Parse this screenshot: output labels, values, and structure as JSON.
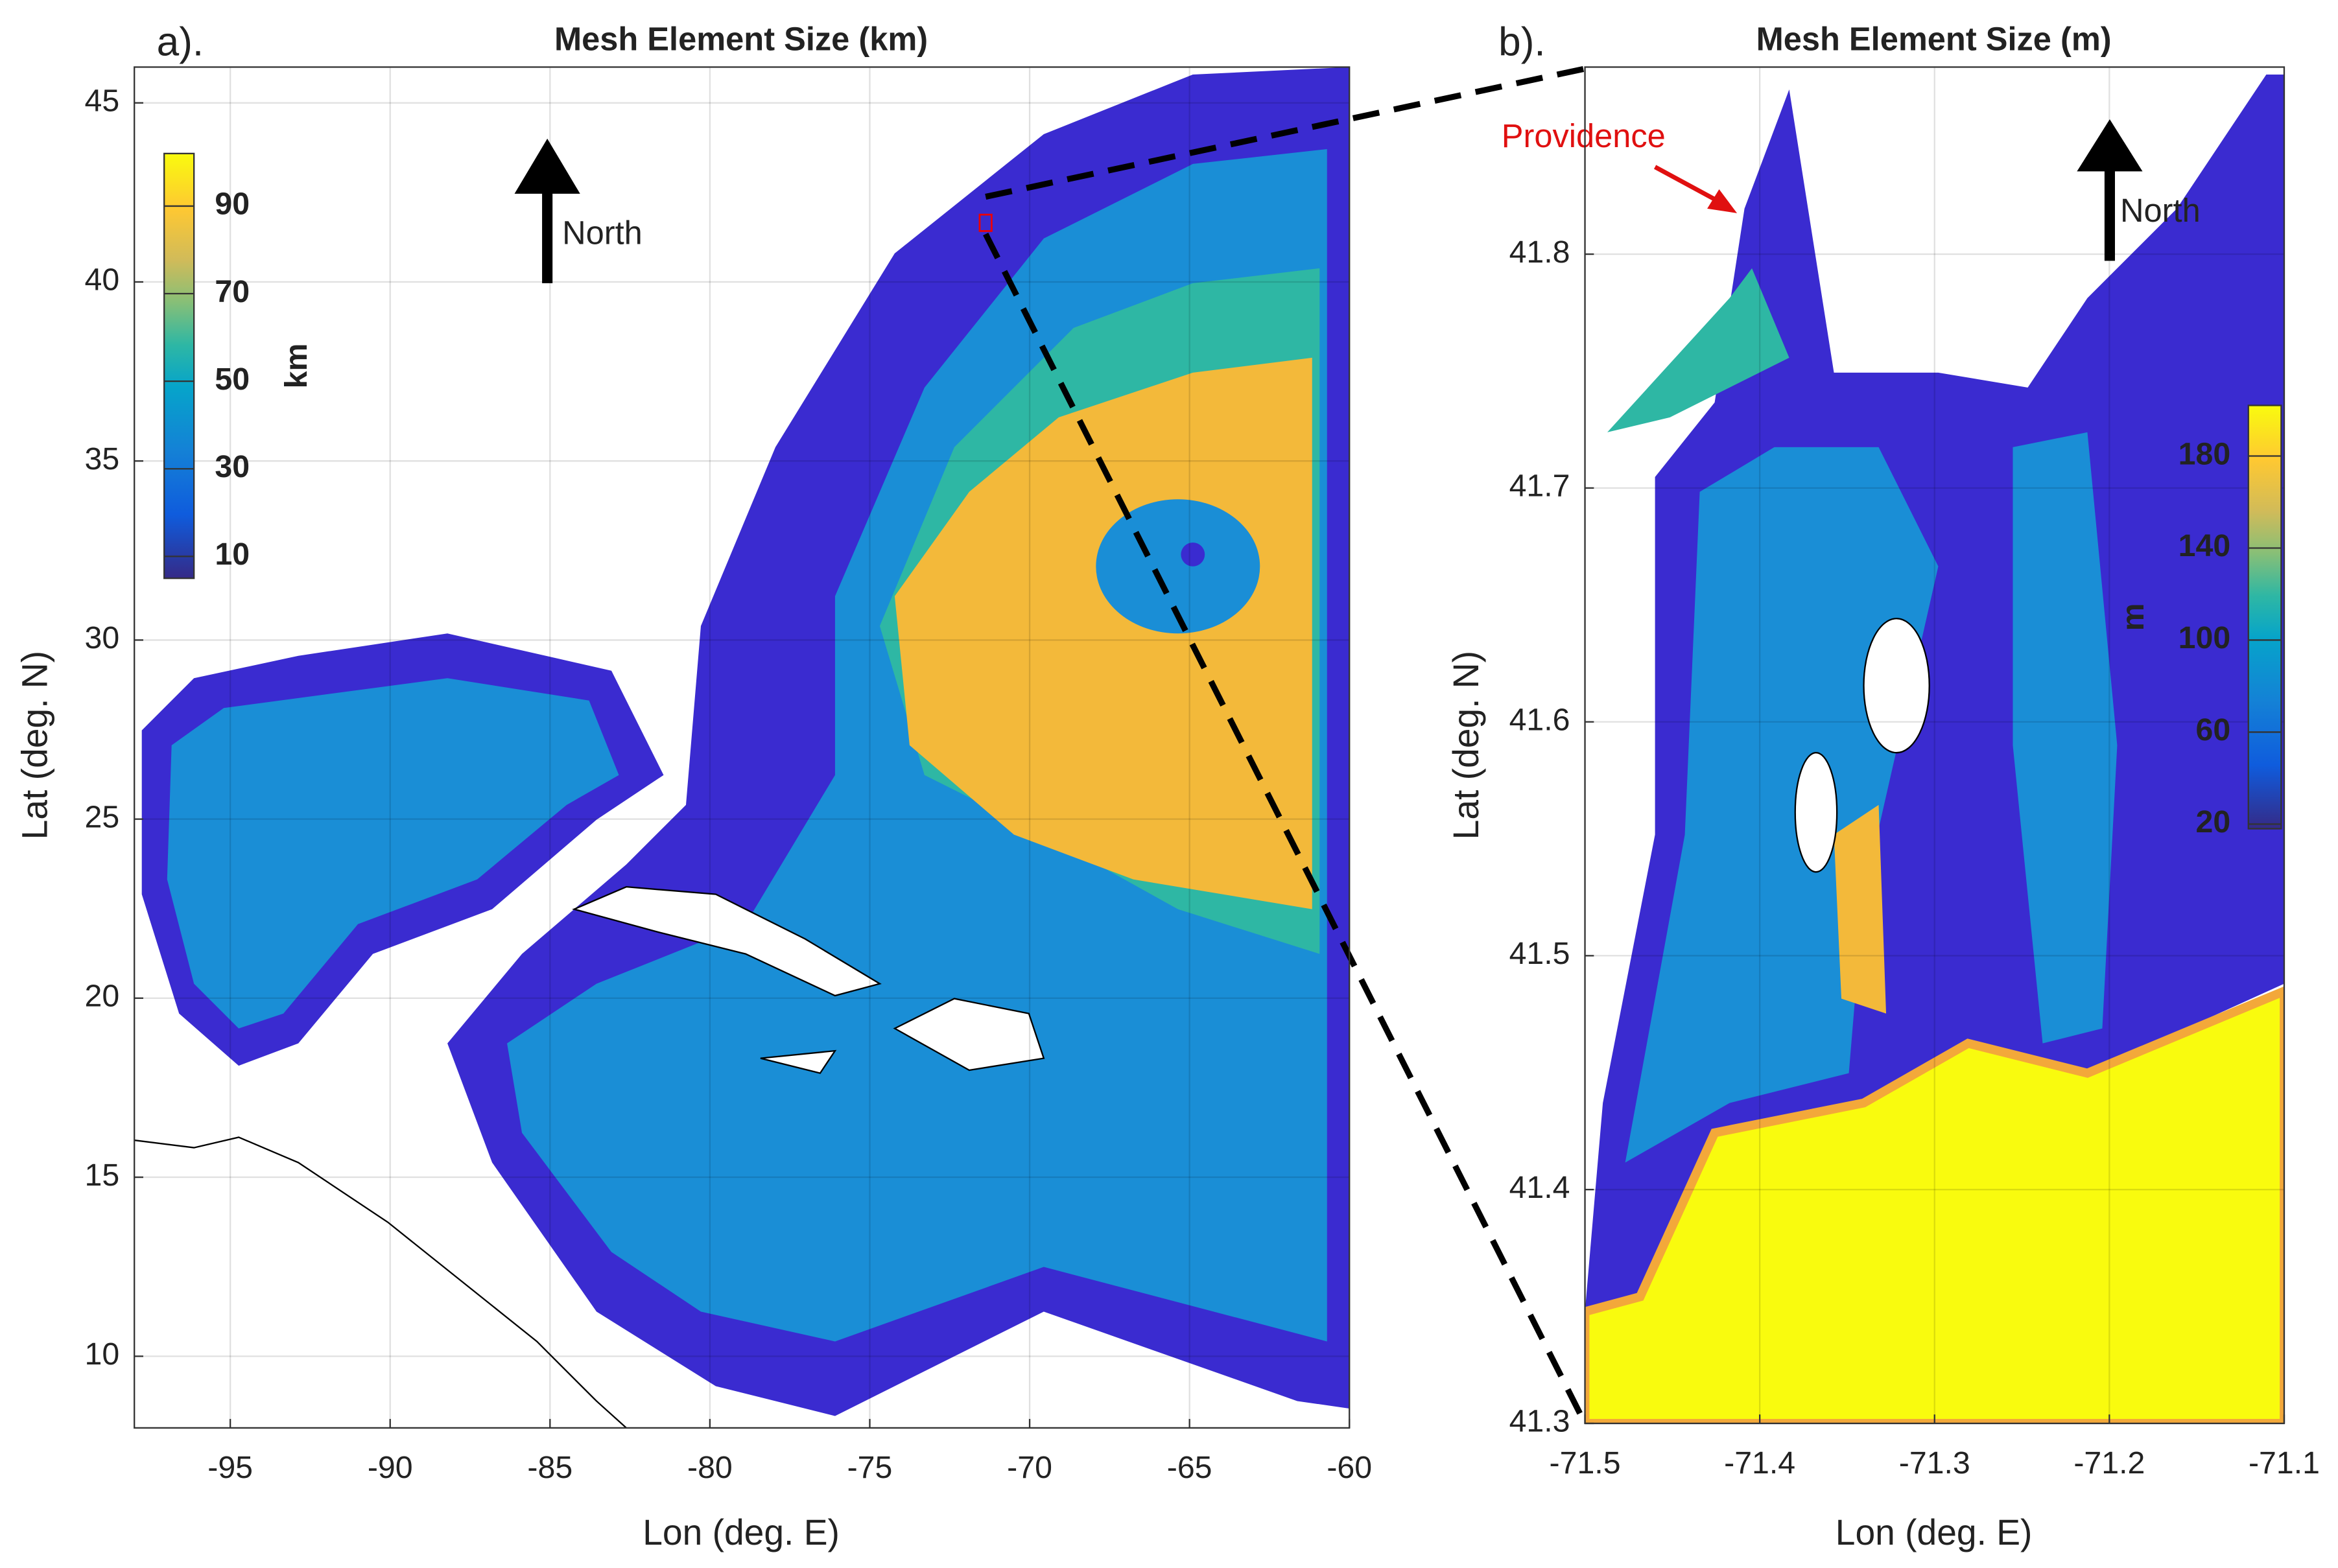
{
  "chart_data": [
    {
      "type": "map",
      "panel_label": "a).",
      "title": "Mesh Element Size (km)",
      "x_label": "Lon (deg. E)",
      "y_label": "Lat (deg. N)",
      "xlim": [
        -98,
        -60
      ],
      "ylim": [
        8,
        46
      ],
      "xticks": [
        -95,
        -90,
        -85,
        -80,
        -75,
        -70,
        -65,
        -60
      ],
      "yticks": [
        10,
        15,
        20,
        25,
        30,
        35,
        40,
        45
      ],
      "grid": true,
      "north_label": "North",
      "colorbar": {
        "label": "km",
        "clim": [
          5,
          102
        ],
        "ticks": [
          10,
          30,
          50,
          70,
          90
        ]
      }
    },
    {
      "type": "map",
      "panel_label": "b).",
      "title": "Mesh Element Size (m)",
      "x_label": "Lon (deg. E)",
      "y_label": "Lat (deg. N)",
      "xlim": [
        -71.5,
        -71.1
      ],
      "ylim": [
        41.3,
        41.88
      ],
      "xticks": [
        -71.5,
        -71.4,
        -71.3,
        -71.2,
        -71.1
      ],
      "yticks": [
        41.3,
        41.4,
        41.5,
        41.6,
        41.7,
        41.8
      ],
      "grid": true,
      "north_label": "North",
      "annotation": "Providence",
      "colorbar": {
        "label": "m",
        "clim": [
          18,
          202
        ],
        "ticks": [
          20,
          60,
          100,
          140,
          180
        ]
      }
    }
  ]
}
